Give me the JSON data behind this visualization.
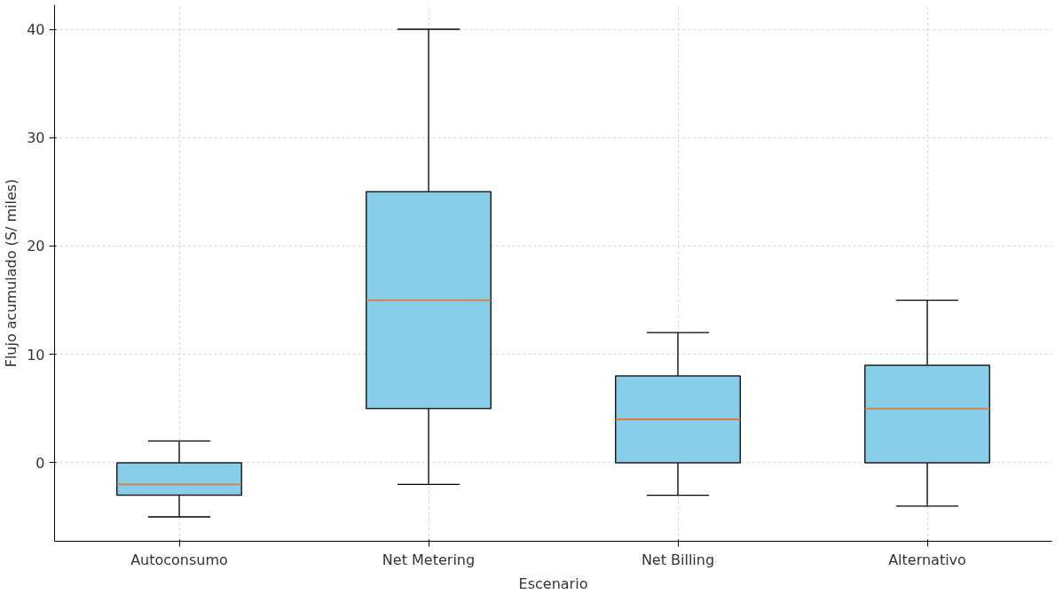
{
  "chart_data": {
    "type": "box",
    "xlabel": "Escenario",
    "ylabel": "Flujo acumulado (S/ miles)",
    "categories": [
      "Autoconsumo",
      "Net Metering",
      "Net Billing",
      "Alternativo"
    ],
    "boxes": [
      {
        "low": -5,
        "q1": -3,
        "median": -2,
        "q3": 0,
        "high": 2
      },
      {
        "low": -2,
        "q1": 5,
        "median": 15,
        "q3": 25,
        "high": 40
      },
      {
        "low": -3,
        "q1": 0,
        "median": 4,
        "q3": 8,
        "high": 12
      },
      {
        "low": -4,
        "q1": 0,
        "median": 5,
        "q3": 9,
        "high": 15
      }
    ],
    "color": "#87ceeb",
    "ylim": [
      -7.25,
      42.25
    ],
    "yticks": [
      0,
      10,
      20,
      30,
      40
    ],
    "grid": true
  }
}
